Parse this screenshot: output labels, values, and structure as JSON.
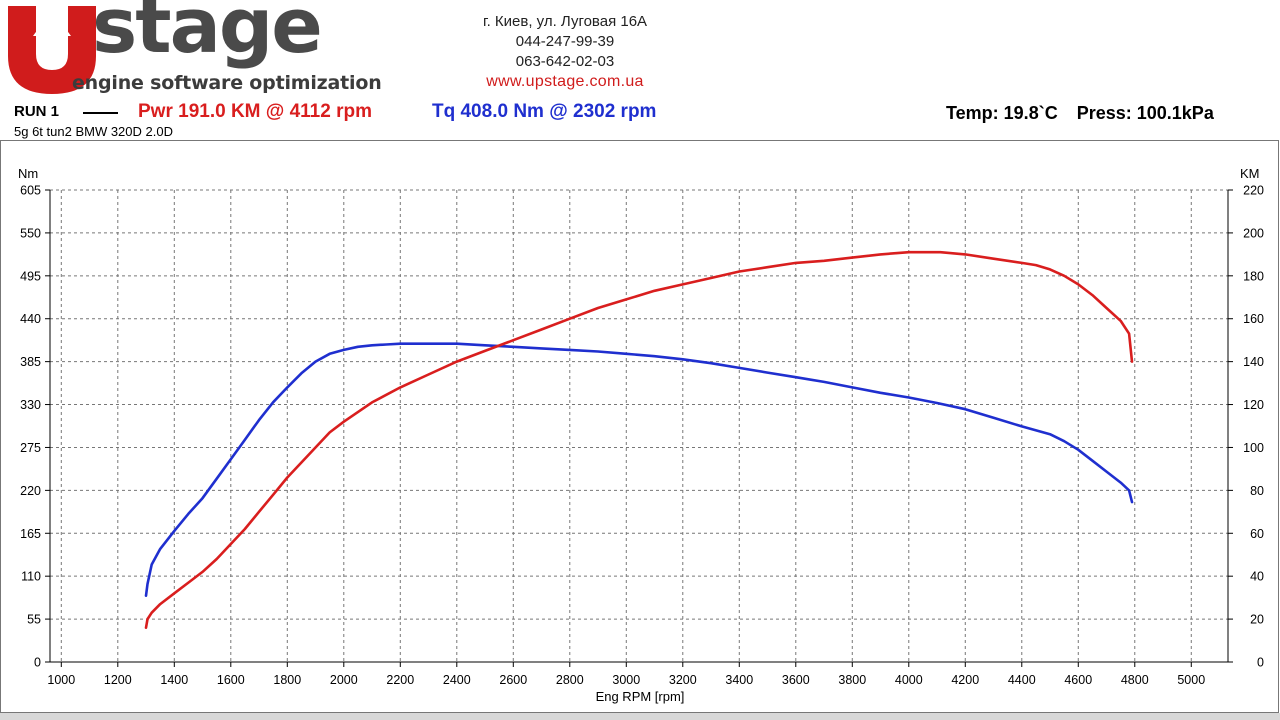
{
  "logo": {
    "wordmark": "stage",
    "tagline": "engine software optimization",
    "colors": {
      "red": "#d01c1c",
      "gray": "#4a4a4a"
    }
  },
  "contact": {
    "address": "г. Киев, ул. Луговая 16А",
    "phone1": "044-247-99-39",
    "phone2": "063-642-02-03",
    "website": "www.upstage.com.ua"
  },
  "header": {
    "run_label": "RUN 1",
    "power_text": "Pwr  191.0 KM @ 4112 rpm",
    "torque_text": "Tq 408.0 Nm @ 2302 rpm",
    "temp_text": "Temp: 19.8`C",
    "press_text": "Press: 100.1kPa",
    "subtitle": "5g 6t tun2 BMW 320D 2.0D"
  },
  "chart_data": {
    "type": "line",
    "xlabel": "Eng RPM [rpm]",
    "ylabel_left": "Nm",
    "ylabel_right": "KM",
    "xlim": [
      960,
      5130
    ],
    "x_ticks": [
      1000,
      1200,
      1400,
      1600,
      1800,
      2000,
      2200,
      2400,
      2600,
      2800,
      3000,
      3200,
      3400,
      3600,
      3800,
      4000,
      4200,
      4400,
      4600,
      4800,
      5000
    ],
    "ylim_left": [
      0,
      605
    ],
    "y_ticks_left": [
      0,
      55,
      110,
      165,
      220,
      275,
      330,
      385,
      440,
      495,
      550,
      605
    ],
    "ylim_right": [
      0,
      220
    ],
    "y_ticks_right": [
      0,
      20,
      40,
      60,
      80,
      100,
      120,
      140,
      160,
      180,
      200,
      220
    ],
    "grid": true,
    "series": [
      {
        "axis": "left",
        "color": "#1f2fcf",
        "x": [
          1300,
          1305,
          1320,
          1350,
          1400,
          1450,
          1500,
          1550,
          1600,
          1650,
          1700,
          1750,
          1800,
          1850,
          1900,
          1950,
          2000,
          2050,
          2100,
          2150,
          2200,
          2300,
          2400,
          2500,
          2600,
          2700,
          2800,
          2900,
          3000,
          3100,
          3200,
          3300,
          3400,
          3500,
          3600,
          3700,
          3800,
          3900,
          4000,
          4100,
          4200,
          4300,
          4400,
          4500,
          4550,
          4600,
          4650,
          4700,
          4750,
          4780,
          4790
        ],
        "y": [
          85,
          100,
          125,
          145,
          168,
          190,
          210,
          235,
          260,
          285,
          310,
          333,
          352,
          370,
          385,
          395,
          400,
          404,
          406,
          407,
          408,
          408,
          408,
          406,
          404,
          402,
          400,
          398,
          395,
          392,
          388,
          383,
          377,
          371,
          365,
          359,
          352,
          345,
          339,
          332,
          324,
          313,
          302,
          292,
          283,
          272,
          258,
          244,
          230,
          220,
          205
        ]
      },
      {
        "axis": "right",
        "color": "#d91e1e",
        "x": [
          1300,
          1305,
          1320,
          1350,
          1400,
          1450,
          1500,
          1550,
          1600,
          1650,
          1700,
          1750,
          1800,
          1850,
          1900,
          1950,
          2000,
          2100,
          2200,
          2300,
          2400,
          2500,
          2600,
          2700,
          2800,
          2900,
          3000,
          3100,
          3200,
          3300,
          3400,
          3500,
          3600,
          3700,
          3800,
          3900,
          4000,
          4100,
          4112,
          4200,
          4300,
          4400,
          4450,
          4500,
          4550,
          4600,
          4650,
          4700,
          4750,
          4780,
          4790
        ],
        "y": [
          16,
          20,
          23,
          27,
          32,
          37,
          42,
          48,
          55,
          62,
          70,
          78,
          86,
          93,
          100,
          107,
          112,
          121,
          128,
          134,
          140,
          145,
          150,
          155,
          160,
          165,
          169,
          173,
          176,
          179,
          182,
          184,
          186,
          187,
          188.5,
          190,
          191,
          191,
          191,
          190,
          188,
          186,
          185,
          183,
          180,
          176,
          171,
          165,
          159,
          153,
          140
        ]
      }
    ]
  }
}
